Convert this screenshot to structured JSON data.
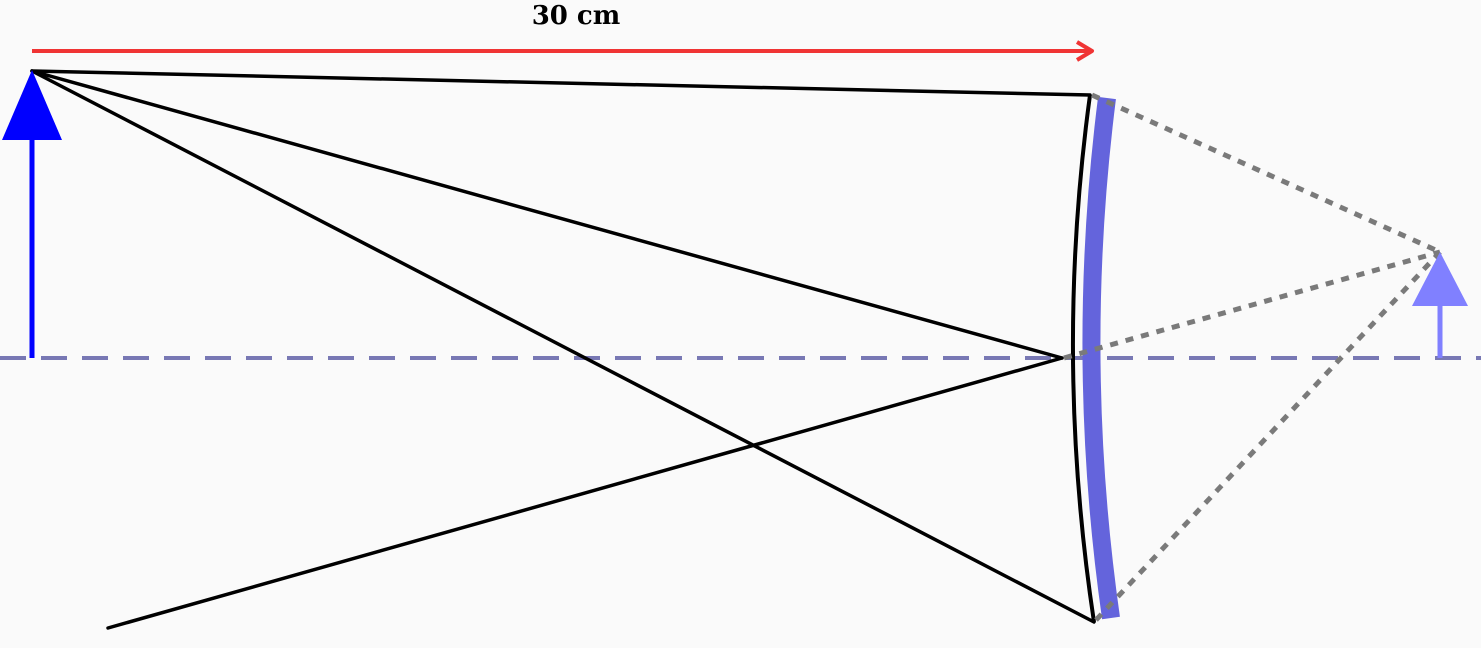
{
  "diagram": {
    "distance_label": "30 cm",
    "colors": {
      "background": "#fafafa",
      "distance_arrow": "#f03434",
      "object": "#0000ff",
      "image": "#8080ff",
      "mirror_fill": "#6464dc",
      "mirror_edge": "#000000",
      "axis": "#7878b4",
      "ray": "#000000",
      "virtual_ray": "#7a7a7a"
    },
    "elements": [
      "object-arrow",
      "convex-mirror",
      "principal-axis",
      "incident-rays",
      "reflected-rays",
      "virtual-rays",
      "virtual-image-arrow",
      "distance-arrow"
    ]
  }
}
